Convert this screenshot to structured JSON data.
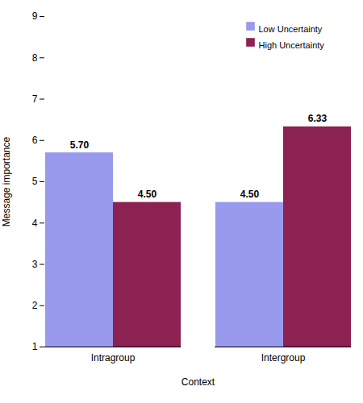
{
  "chart_data": {
    "type": "bar",
    "xlabel": "Context",
    "ylabel": "Message importance",
    "categories": [
      "Intragroup",
      "Intergroup"
    ],
    "series": [
      {
        "name": "Low Uncertainty",
        "color": "#9999ee",
        "values": [
          5.7,
          4.5
        ],
        "value_labels": [
          "5.70",
          "4.50"
        ]
      },
      {
        "name": "High Uncertainty",
        "color": "#8B2252",
        "values": [
          4.5,
          6.33
        ],
        "value_labels": [
          "4.50",
          "6.33"
        ]
      }
    ],
    "ylim": [
      1,
      9
    ],
    "yticks": [
      1,
      2,
      3,
      4,
      5,
      6,
      7,
      8,
      9
    ],
    "legend": "upper right",
    "data_labels": true
  }
}
